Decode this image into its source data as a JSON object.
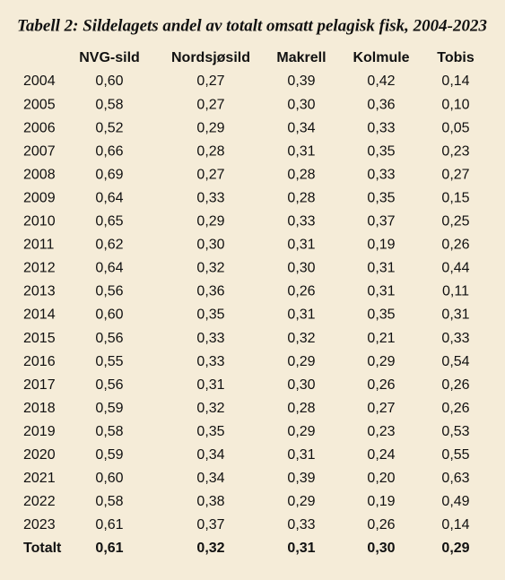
{
  "title": "Tabell 2: Sildelagets andel av totalt omsatt pelagisk fisk, 2004-2023",
  "table": {
    "columns": [
      "NVG-sild",
      "Nordsjøsild",
      "Makrell",
      "Kolmule",
      "Tobis"
    ],
    "rows": [
      [
        "2004",
        "0,60",
        "0,27",
        "0,39",
        "0,42",
        "0,14"
      ],
      [
        "2005",
        "0,58",
        "0,27",
        "0,30",
        "0,36",
        "0,10"
      ],
      [
        "2006",
        "0,52",
        "0,29",
        "0,34",
        "0,33",
        "0,05"
      ],
      [
        "2007",
        "0,66",
        "0,28",
        "0,31",
        "0,35",
        "0,23"
      ],
      [
        "2008",
        "0,69",
        "0,27",
        "0,28",
        "0,33",
        "0,27"
      ],
      [
        "2009",
        "0,64",
        "0,33",
        "0,28",
        "0,35",
        "0,15"
      ],
      [
        "2010",
        "0,65",
        "0,29",
        "0,33",
        "0,37",
        "0,25"
      ],
      [
        "2011",
        "0,62",
        "0,30",
        "0,31",
        "0,19",
        "0,26"
      ],
      [
        "2012",
        "0,64",
        "0,32",
        "0,30",
        "0,31",
        "0,44"
      ],
      [
        "2013",
        "0,56",
        "0,36",
        "0,26",
        "0,31",
        "0,11"
      ],
      [
        "2014",
        "0,60",
        "0,35",
        "0,31",
        "0,35",
        "0,31"
      ],
      [
        "2015",
        "0,56",
        "0,33",
        "0,32",
        "0,21",
        "0,33"
      ],
      [
        "2016",
        "0,55",
        "0,33",
        "0,29",
        "0,29",
        "0,54"
      ],
      [
        "2017",
        "0,56",
        "0,31",
        "0,30",
        "0,26",
        "0,26"
      ],
      [
        "2018",
        "0,59",
        "0,32",
        "0,28",
        "0,27",
        "0,26"
      ],
      [
        "2019",
        "0,58",
        "0,35",
        "0,29",
        "0,23",
        "0,53"
      ],
      [
        "2020",
        "0,59",
        "0,34",
        "0,31",
        "0,24",
        "0,55"
      ],
      [
        "2021",
        "0,60",
        "0,34",
        "0,39",
        "0,20",
        "0,63"
      ],
      [
        "2022",
        "0,58",
        "0,38",
        "0,29",
        "0,19",
        "0,49"
      ],
      [
        "2023",
        "0,61",
        "0,37",
        "0,33",
        "0,26",
        "0,14"
      ]
    ],
    "total": [
      "Totalt",
      "0,61",
      "0,32",
      "0,31",
      "0,30",
      "0,29"
    ]
  }
}
